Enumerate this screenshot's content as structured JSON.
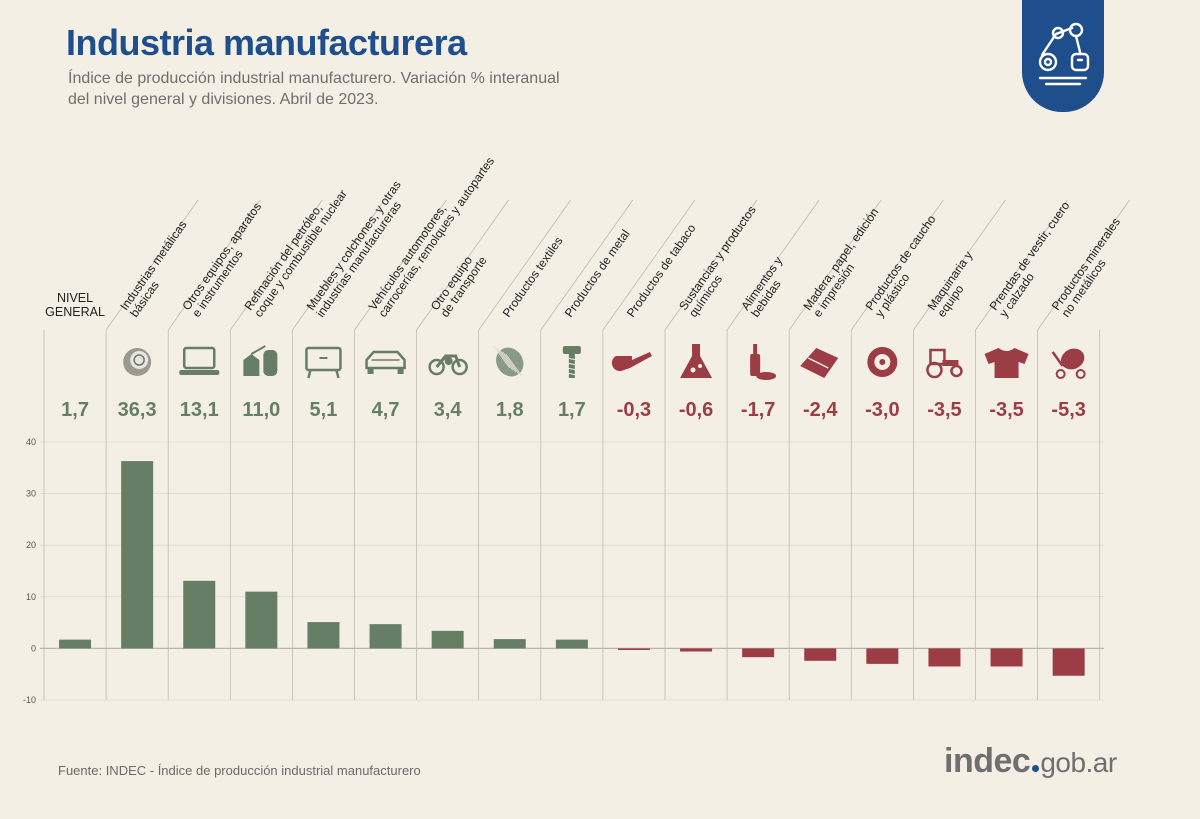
{
  "header": {
    "title": "Industria manufacturera",
    "subtitle_line1": "Índice de producción industrial manufacturero. Variación % interanual",
    "subtitle_line2": "del nivel general y divisiones. Abril de 2023."
  },
  "badge": {
    "icon": "robotic-arm-icon"
  },
  "footer": {
    "source": "Fuente: INDEC - Índice de producción industrial manufacturero",
    "logo_brand": "indec",
    "logo_domain": "gob.ar"
  },
  "colors": {
    "positive": "#677e66",
    "negative": "#9c3c45",
    "title": "#1e4f8c",
    "background": "#f3efe4",
    "grid": "#b9b5ab"
  },
  "chart_data": {
    "type": "bar",
    "title": "Industria manufacturera",
    "xlabel": "",
    "ylabel": "",
    "ylim": [
      -10,
      40
    ],
    "yticks": [
      40,
      30,
      20,
      10,
      0,
      -10
    ],
    "categories": [
      {
        "lines": [
          "NIVEL",
          "GENERAL"
        ],
        "icon": "",
        "value_label": "1,7"
      },
      {
        "lines": [
          "Industrias metálicas",
          "básicas"
        ],
        "icon": "metal-coil-icon",
        "value_label": "36,3"
      },
      {
        "lines": [
          "Otros equipos, aparatos",
          "e instrumentos"
        ],
        "icon": "laptop-icon",
        "value_label": "13,1"
      },
      {
        "lines": [
          "Refinación del petróleo,",
          "coque y combustible nuclear"
        ],
        "icon": "refinery-icon",
        "value_label": "11,0"
      },
      {
        "lines": [
          "Muebles y colchones, y otras",
          "industrias manufactureras"
        ],
        "icon": "cabinet-icon",
        "value_label": "5,1"
      },
      {
        "lines": [
          "Vehículos automotores,",
          "carrocerías, remolques y autopartes"
        ],
        "icon": "car-icon",
        "value_label": "4,7"
      },
      {
        "lines": [
          "Otro equipo",
          "de transporte"
        ],
        "icon": "motorcycle-icon",
        "value_label": "3,4"
      },
      {
        "lines": [
          "Productos textiles"
        ],
        "icon": "thread-spool-icon",
        "value_label": "1,8"
      },
      {
        "lines": [
          "Productos de metal"
        ],
        "icon": "bolt-icon",
        "value_label": "1,7"
      },
      {
        "lines": [
          "Productos de tabaco"
        ],
        "icon": "pipe-icon",
        "value_label": "-0,3"
      },
      {
        "lines": [
          "Sustancias y productos",
          "químicos"
        ],
        "icon": "flask-icon",
        "value_label": "-0,6"
      },
      {
        "lines": [
          "Alimentos y",
          "bebidas"
        ],
        "icon": "bottle-bread-icon",
        "value_label": "-1,7"
      },
      {
        "lines": [
          "Madera, papel, edición",
          "e impresión"
        ],
        "icon": "paper-rolls-icon",
        "value_label": "-2,4"
      },
      {
        "lines": [
          "Productos de caucho",
          "y plástico"
        ],
        "icon": "tire-icon",
        "value_label": "-3,0"
      },
      {
        "lines": [
          "Maquinaria y",
          "equipo"
        ],
        "icon": "tractor-icon",
        "value_label": "-3,5"
      },
      {
        "lines": [
          "Prendas de vestir, cuero",
          "y calzado"
        ],
        "icon": "sweater-icon",
        "value_label": "-3,5"
      },
      {
        "lines": [
          "Productos minerales",
          "no metálicos"
        ],
        "icon": "cement-mixer-icon",
        "value_label": "-5,3"
      }
    ],
    "values": [
      1.7,
      36.3,
      13.1,
      11.0,
      5.1,
      4.7,
      3.4,
      1.8,
      1.7,
      -0.3,
      -0.6,
      -1.7,
      -2.4,
      -3.0,
      -3.5,
      -3.5,
      -5.3
    ]
  }
}
